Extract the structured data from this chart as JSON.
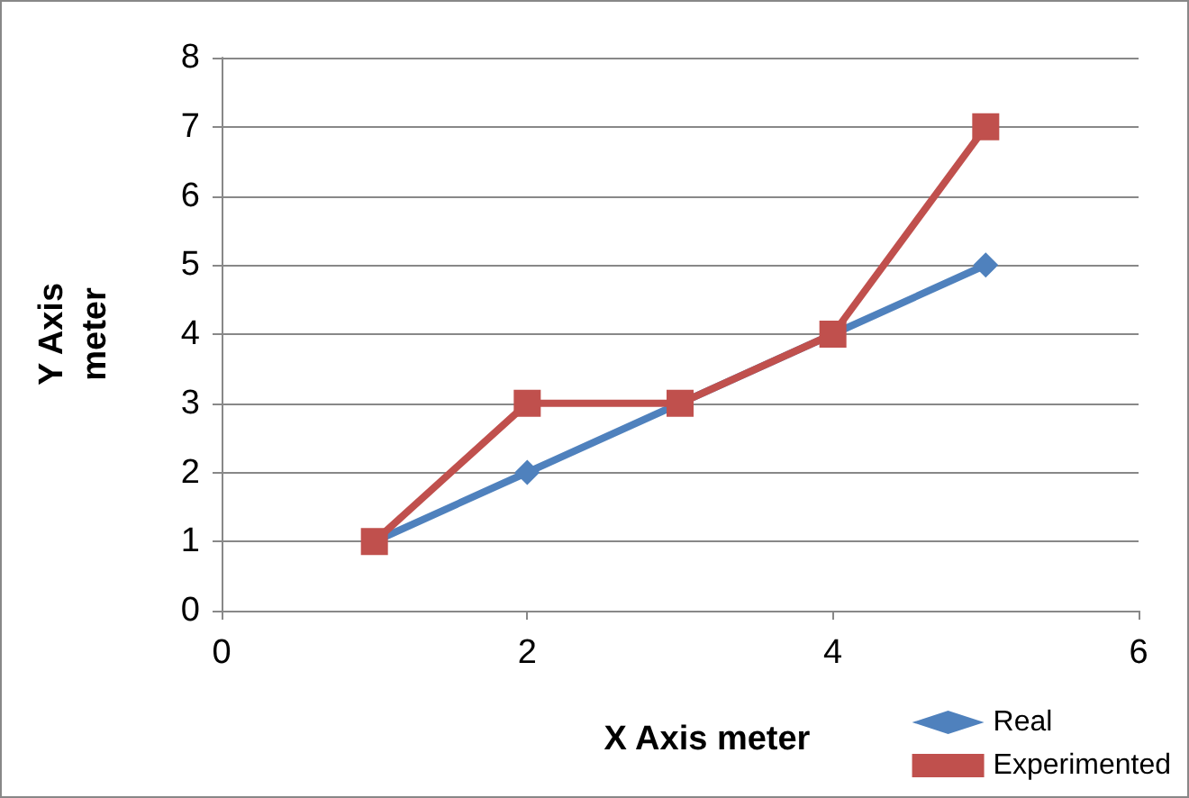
{
  "chart_data": {
    "type": "line",
    "xlabel": "X Axis meter",
    "ylabel": "Y Axis\nmeter",
    "x": [
      1,
      2,
      3,
      4,
      5
    ],
    "series": [
      {
        "name": "Real",
        "color": "#4f81bd",
        "marker": "diamond",
        "values": [
          1,
          2,
          3,
          4,
          5
        ]
      },
      {
        "name": "Experimented",
        "color": "#c0504d",
        "marker": "square",
        "values": [
          1,
          3,
          3,
          4,
          7
        ]
      }
    ],
    "xlim": [
      0,
      6
    ],
    "xticks": [
      0,
      2,
      4,
      6
    ],
    "ylim": [
      0,
      8
    ],
    "yticks": [
      0,
      1,
      2,
      3,
      4,
      5,
      6,
      7,
      8
    ],
    "grid": "y",
    "legend": "bottom right"
  }
}
